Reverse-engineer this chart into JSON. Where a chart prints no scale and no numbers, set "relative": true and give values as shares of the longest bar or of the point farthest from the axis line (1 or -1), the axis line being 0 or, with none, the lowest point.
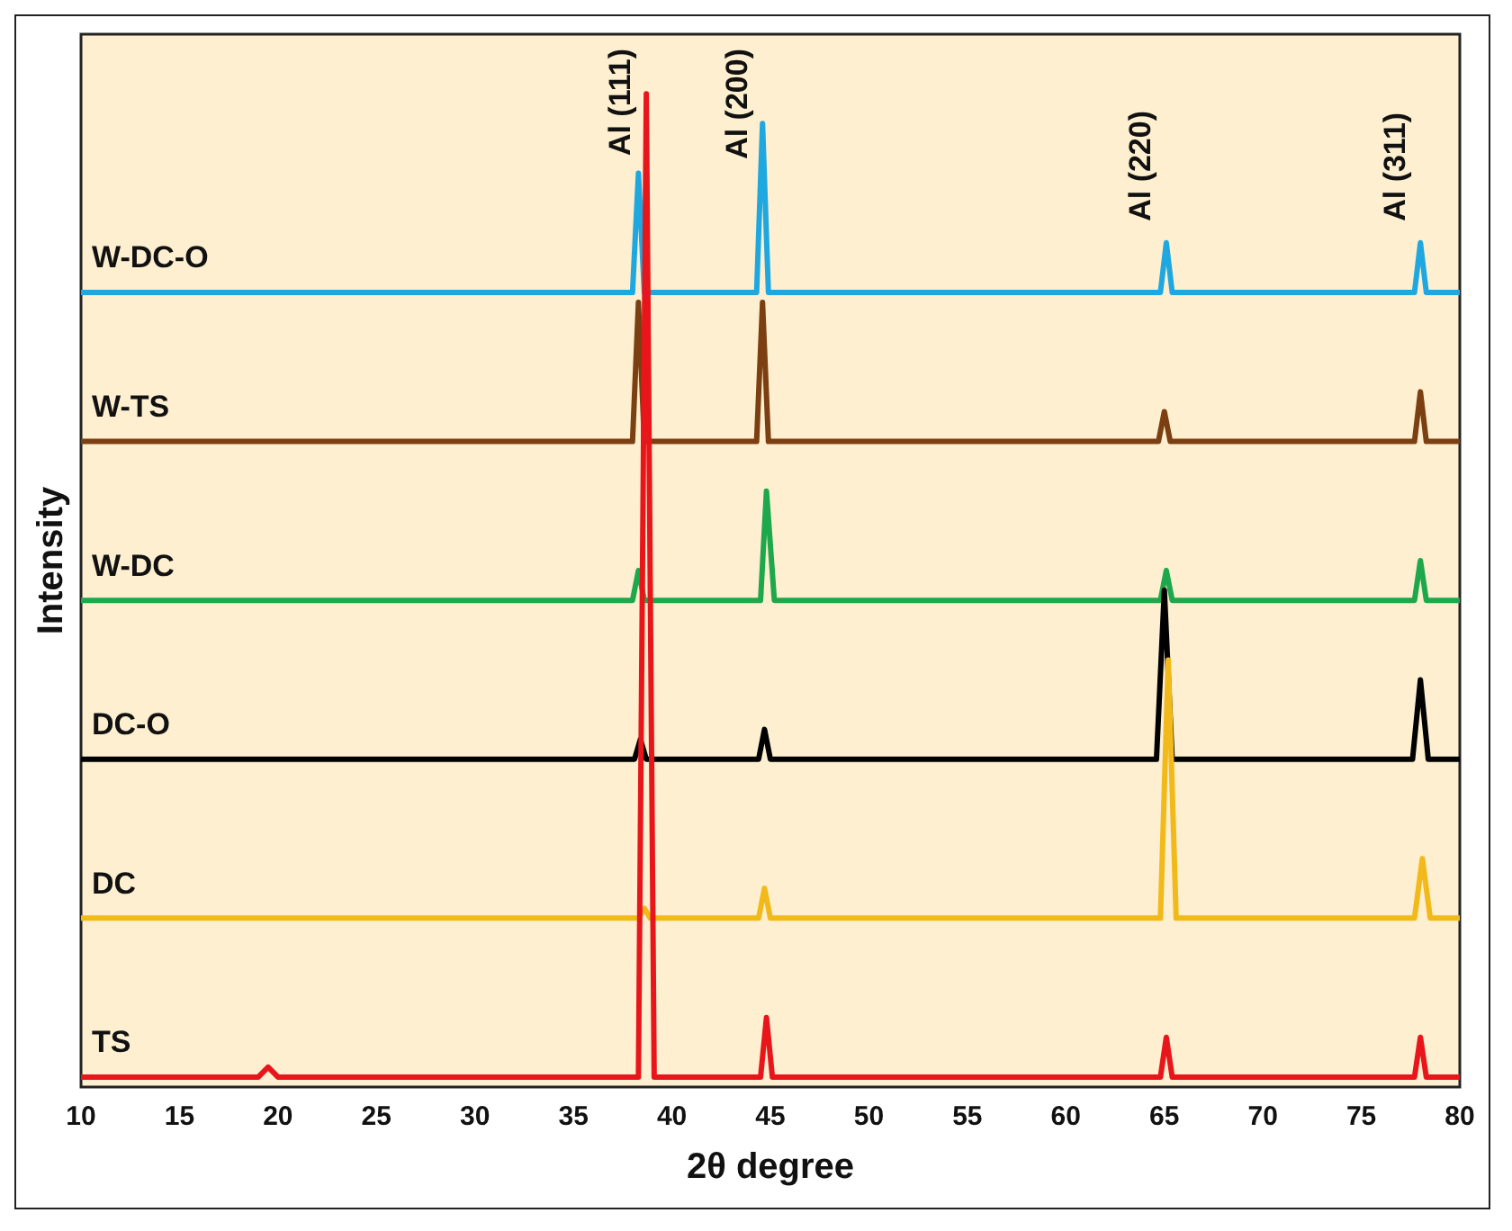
{
  "chart_data": {
    "type": "line",
    "relative": true,
    "xlabel": "2θ degree",
    "ylabel": "Intensity",
    "xlim": [
      10,
      80
    ],
    "xticks": [
      10,
      15,
      20,
      25,
      30,
      35,
      40,
      45,
      50,
      55,
      60,
      65,
      70,
      75,
      80
    ],
    "tick_labels": "x",
    "grid": false,
    "legend": false,
    "marker": "none",
    "line_style": "solid",
    "annotations": [
      {
        "text": "Al (111)",
        "x": 38.7,
        "y": 1.0
      },
      {
        "text": "Al (200)",
        "x": 44.6,
        "y": 0.97
      },
      {
        "text": "Al (220)",
        "x": 65.1,
        "y": 0.85
      },
      {
        "text": "Al (311)",
        "x": 78.0,
        "y": 0.85
      }
    ],
    "series": [
      {
        "name": "W-DC-O",
        "color": "#1fa8e0",
        "x": [
          10,
          38.0,
          38.3,
          38.6,
          44.3,
          44.6,
          44.9,
          64.8,
          65.1,
          65.4,
          77.7,
          78.0,
          78.3,
          80
        ],
        "values": [
          0.8,
          0.8,
          0.92,
          0.8,
          0.8,
          0.97,
          0.8,
          0.8,
          0.85,
          0.8,
          0.8,
          0.85,
          0.8,
          0.8
        ]
      },
      {
        "name": "W-TS",
        "color": "#7b3f12",
        "x": [
          10,
          38.0,
          38.3,
          38.6,
          44.3,
          44.6,
          44.9,
          64.7,
          65.0,
          65.3,
          77.7,
          78.0,
          78.3,
          80
        ],
        "values": [
          0.65,
          0.65,
          0.79,
          0.65,
          0.65,
          0.79,
          0.65,
          0.65,
          0.68,
          0.65,
          0.65,
          0.7,
          0.65,
          0.65
        ]
      },
      {
        "name": "W-DC",
        "color": "#1ea84c",
        "x": [
          10,
          38.0,
          38.3,
          38.6,
          44.5,
          44.8,
          45.2,
          64.8,
          65.1,
          65.4,
          77.7,
          78.0,
          78.3,
          80
        ],
        "values": [
          0.49,
          0.49,
          0.52,
          0.49,
          0.49,
          0.6,
          0.49,
          0.49,
          0.52,
          0.49,
          0.49,
          0.53,
          0.49,
          0.49
        ]
      },
      {
        "name": "DC-O",
        "color": "#000000",
        "x": [
          10,
          38.1,
          38.4,
          38.7,
          44.4,
          44.7,
          45.0,
          64.6,
          65.0,
          65.4,
          77.6,
          78.0,
          78.4,
          80
        ],
        "values": [
          0.33,
          0.33,
          0.35,
          0.33,
          0.33,
          0.36,
          0.33,
          0.33,
          0.5,
          0.33,
          0.33,
          0.41,
          0.33,
          0.33
        ]
      },
      {
        "name": "DC",
        "color": "#f2b91a",
        "x": [
          10,
          38.3,
          38.6,
          38.9,
          44.4,
          44.7,
          45.0,
          64.8,
          65.2,
          65.6,
          77.7,
          78.1,
          78.5,
          80
        ],
        "values": [
          0.17,
          0.17,
          0.18,
          0.17,
          0.17,
          0.2,
          0.17,
          0.17,
          0.43,
          0.17,
          0.17,
          0.23,
          0.17,
          0.17
        ]
      },
      {
        "name": "TS",
        "color": "#e8161b",
        "x": [
          10,
          19.0,
          19.5,
          20.0,
          38.3,
          38.7,
          39.1,
          44.5,
          44.8,
          45.1,
          64.8,
          65.1,
          65.4,
          77.7,
          78.0,
          78.3,
          80
        ],
        "values": [
          0.01,
          0.01,
          0.02,
          0.01,
          0.01,
          1.0,
          0.01,
          0.01,
          0.07,
          0.01,
          0.01,
          0.05,
          0.01,
          0.01,
          0.05,
          0.01,
          0.01
        ]
      }
    ]
  }
}
